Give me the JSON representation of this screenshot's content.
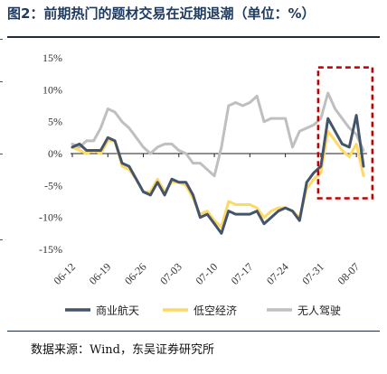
{
  "title": "图2：前期热门的题材交易在近期退潮（单位：%）",
  "source": "数据来源：Wind，东吴证券研究所",
  "chart_data": {
    "type": "line",
    "xlabel": "",
    "ylabel": "",
    "ylim": [
      -15,
      15
    ],
    "yticks": [
      15,
      10,
      5,
      0,
      -5,
      -10,
      -15
    ],
    "ytick_labels": [
      "15%",
      "10%",
      "5%",
      "0%",
      "-5%",
      "-10%",
      "-15%"
    ],
    "xtick_labels": [
      "06-12",
      "06-19",
      "06-26",
      "07-03",
      "07-10",
      "07-17",
      "07-24",
      "07-31",
      "08-07"
    ],
    "xtick_index": [
      0,
      5,
      10,
      15,
      20,
      25,
      30,
      35,
      40
    ],
    "legend_position": "bottom",
    "highlight_box": {
      "from_index": 35,
      "to_index": 42,
      "ymin": -7,
      "ymax": 13.5,
      "color": "#c00000",
      "style": "dashed"
    },
    "series": [
      {
        "name": "商业航天",
        "color": "#44546a",
        "values": [
          1.0,
          1.5,
          0.5,
          0.5,
          0.5,
          2.5,
          2.0,
          -1.5,
          -2.0,
          -4.0,
          -6.0,
          -6.5,
          -4.5,
          -6.5,
          -4.0,
          -4.5,
          -4.5,
          -6.5,
          -10.0,
          -9.5,
          -11.0,
          -12.5,
          -9.0,
          -9.5,
          -9.5,
          -9.5,
          -9.0,
          -11.0,
          -10.0,
          -9.0,
          -8.5,
          -9.0,
          -10.5,
          -4.5,
          -3.0,
          -2.0,
          5.5,
          3.5,
          1.5,
          1.0,
          6.0,
          -2.0
        ]
      },
      {
        "name": "低空经济",
        "color": "#ffd966",
        "values": [
          1.0,
          0.5,
          0.0,
          0.5,
          0.0,
          2.0,
          2.0,
          -2.0,
          -2.5,
          -4.0,
          -6.0,
          -6.0,
          -4.0,
          -6.0,
          -4.5,
          -4.5,
          -5.0,
          -7.0,
          -9.5,
          -9.0,
          -10.5,
          -11.5,
          -7.5,
          -8.0,
          -8.0,
          -8.0,
          -8.5,
          -10.0,
          -9.0,
          -8.5,
          -8.5,
          -9.0,
          -10.0,
          -5.5,
          -4.0,
          -3.0,
          3.5,
          2.0,
          0.5,
          -0.5,
          1.5,
          -3.5
        ]
      },
      {
        "name": "无人驾驶",
        "color": "#bfbfbf",
        "values": [
          1.5,
          1.0,
          2.0,
          2.0,
          4.0,
          7.0,
          6.5,
          5.0,
          4.0,
          2.5,
          1.0,
          0.0,
          1.0,
          1.5,
          1.5,
          0.5,
          0.0,
          -1.5,
          -1.5,
          -2.5,
          -3.5,
          1.0,
          7.5,
          8.0,
          7.5,
          8.0,
          9.0,
          5.0,
          5.5,
          5.5,
          5.5,
          1.0,
          3.5,
          4.0,
          4.5,
          5.5,
          9.5,
          7.0,
          5.5,
          4.0,
          3.0,
          0.5
        ]
      }
    ]
  }
}
